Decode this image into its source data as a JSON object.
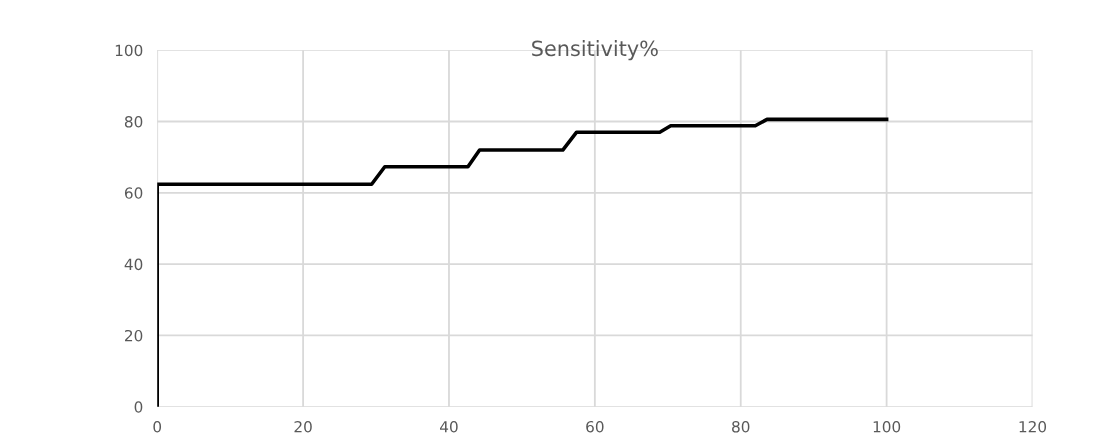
{
  "chart_data": {
    "type": "line",
    "title": "Sensitivity%",
    "x": [
      0,
      0,
      29.4,
      31.2,
      42.6,
      44.2,
      55.6,
      57.5,
      68.9,
      70.4,
      82.0,
      83.6,
      100
    ],
    "series": [
      {
        "color": "#000000",
        "values": [
          0,
          62.4,
          62.4,
          67.3,
          67.3,
          72.0,
          72.0,
          77.0,
          77.0,
          78.8,
          78.8,
          80.6,
          80.6
        ]
      }
    ],
    "xlim": [
      0,
      120
    ],
    "xticks": [
      0,
      20,
      40,
      60,
      80,
      100,
      120
    ],
    "ylim": [
      0,
      100
    ],
    "yticks": [
      0,
      20,
      40,
      60,
      80,
      100
    ],
    "grid": true,
    "legend": false,
    "marker": "none",
    "line_style": "solid"
  }
}
